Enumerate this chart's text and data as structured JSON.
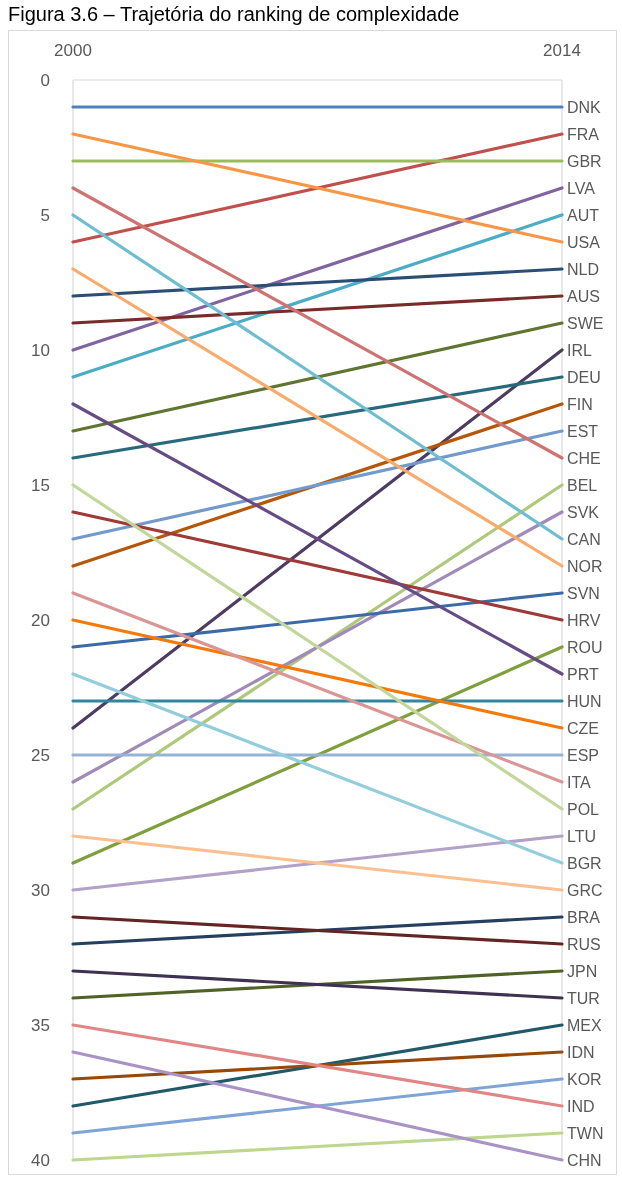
{
  "chart_data": {
    "type": "line",
    "title": "Figura 3.6 – Trajetória do ranking de complexidade",
    "categories": [
      "2000",
      "2014"
    ],
    "ylim": [
      40,
      0
    ],
    "yticks": [
      0,
      5,
      10,
      15,
      20,
      25,
      30,
      35,
      40
    ],
    "grid": "x",
    "series": [
      {
        "name": "DNK",
        "color": "#4f81bd",
        "values": [
          1,
          1
        ]
      },
      {
        "name": "FRA",
        "color": "#c0504d",
        "values": [
          6,
          2
        ]
      },
      {
        "name": "GBR",
        "color": "#9bbb59",
        "values": [
          3,
          3
        ]
      },
      {
        "name": "LVA",
        "color": "#8064a2",
        "values": [
          10,
          4
        ]
      },
      {
        "name": "AUT",
        "color": "#4bacc6",
        "values": [
          11,
          5
        ]
      },
      {
        "name": "USA",
        "color": "#f79646",
        "values": [
          2,
          6
        ]
      },
      {
        "name": "NLD",
        "color": "#2c4d75",
        "values": [
          8,
          7
        ]
      },
      {
        "name": "AUS",
        "color": "#772c2a",
        "values": [
          9,
          8
        ]
      },
      {
        "name": "SWE",
        "color": "#5f7530",
        "values": [
          13,
          9
        ]
      },
      {
        "name": "IRL",
        "color": "#4d3b62",
        "values": [
          24,
          10
        ]
      },
      {
        "name": "DEU",
        "color": "#276a7c",
        "values": [
          14,
          11
        ]
      },
      {
        "name": "FIN",
        "color": "#b65708",
        "values": [
          18,
          12
        ]
      },
      {
        "name": "EST",
        "color": "#729aca",
        "values": [
          17,
          13
        ]
      },
      {
        "name": "CHE",
        "color": "#cd7371",
        "values": [
          4,
          14
        ]
      },
      {
        "name": "BEL",
        "color": "#afc97a",
        "values": [
          27,
          15
        ]
      },
      {
        "name": "SVK",
        "color": "#a08ab8",
        "values": [
          26,
          16
        ]
      },
      {
        "name": "CAN",
        "color": "#6fbdd1",
        "values": [
          5,
          17
        ]
      },
      {
        "name": "NOR",
        "color": "#f9ab6b",
        "values": [
          7,
          18
        ]
      },
      {
        "name": "SVN",
        "color": "#3a6ba7",
        "values": [
          21,
          19
        ]
      },
      {
        "name": "HRV",
        "color": "#9e3b38",
        "values": [
          16,
          20
        ]
      },
      {
        "name": "ROU",
        "color": "#7f9f3d",
        "values": [
          29,
          21
        ]
      },
      {
        "name": "PRT",
        "color": "#664c85",
        "values": [
          12,
          22
        ]
      },
      {
        "name": "HUN",
        "color": "#31859c",
        "values": [
          23,
          23
        ]
      },
      {
        "name": "CZE",
        "color": "#f2790a",
        "values": [
          20,
          24
        ]
      },
      {
        "name": "ESP",
        "color": "#95b3d7",
        "values": [
          25,
          25
        ]
      },
      {
        "name": "ITA",
        "color": "#d99694",
        "values": [
          19,
          26
        ]
      },
      {
        "name": "POL",
        "color": "#c3d69b",
        "values": [
          15,
          27
        ]
      },
      {
        "name": "LTU",
        "color": "#b3a2c7",
        "values": [
          30,
          28
        ]
      },
      {
        "name": "BGR",
        "color": "#92cddc",
        "values": [
          22,
          29
        ]
      },
      {
        "name": "GRC",
        "color": "#fac090",
        "values": [
          28,
          30
        ]
      },
      {
        "name": "BRA",
        "color": "#243f60",
        "values": [
          32,
          31
        ]
      },
      {
        "name": "RUS",
        "color": "#632523",
        "values": [
          31,
          32
        ]
      },
      {
        "name": "JPN",
        "color": "#4f6228",
        "values": [
          34,
          33
        ]
      },
      {
        "name": "TUR",
        "color": "#3f3151",
        "values": [
          33,
          34
        ]
      },
      {
        "name": "MEX",
        "color": "#215968",
        "values": [
          38,
          35
        ]
      },
      {
        "name": "IDN",
        "color": "#984807",
        "values": [
          37,
          36
        ]
      },
      {
        "name": "KOR",
        "color": "#7fa4d6",
        "values": [
          39,
          37
        ]
      },
      {
        "name": "IND",
        "color": "#e08785",
        "values": [
          35,
          38
        ]
      },
      {
        "name": "TWN",
        "color": "#bdd78f",
        "values": [
          40,
          39
        ]
      },
      {
        "name": "CHN",
        "color": "#a993c6",
        "values": [
          36,
          40
        ]
      }
    ]
  }
}
